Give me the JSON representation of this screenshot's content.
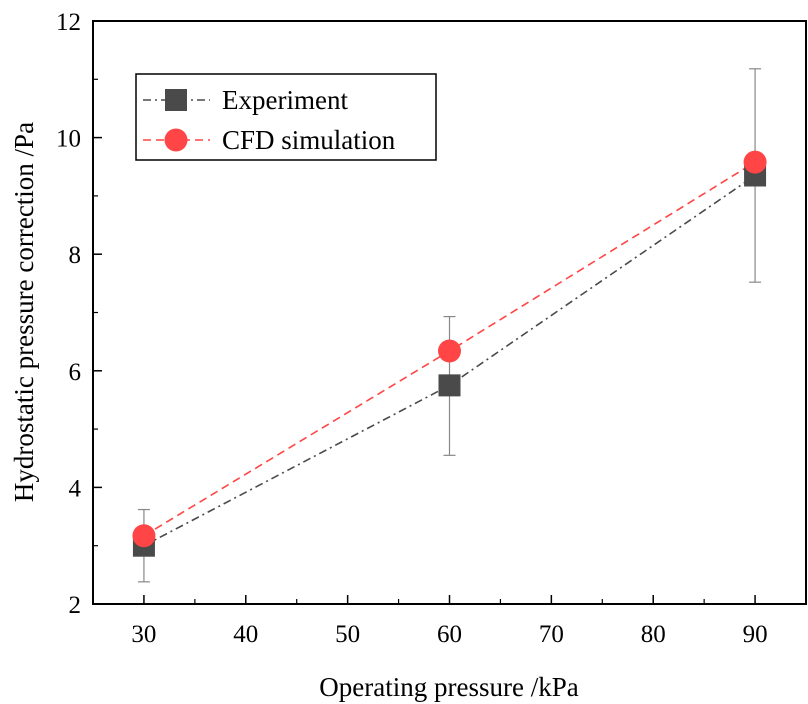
{
  "chart_data": {
    "type": "line",
    "xlabel": "Operating pressure /kPa",
    "ylabel": "Hydrostatic pressure correction /Pa",
    "xlim": [
      25,
      95
    ],
    "ylim": [
      2,
      12
    ],
    "xticks": [
      30,
      40,
      50,
      60,
      70,
      80,
      90
    ],
    "yticks": [
      2,
      4,
      6,
      8,
      10,
      12
    ],
    "x_tick_labels": [
      "30",
      "40",
      "50",
      "60",
      "70",
      "80",
      "90"
    ],
    "y_tick_labels": [
      "2",
      "4",
      "6",
      "8",
      "10",
      "12"
    ],
    "grid": false,
    "legend_position": "top-left",
    "series": [
      {
        "name": "Experiment",
        "x": [
          30,
          60,
          90
        ],
        "y": [
          3.0,
          5.75,
          9.35
        ],
        "yerr_low": [
          2.38,
          4.55,
          7.52
        ],
        "yerr_high": [
          3.62,
          6.93,
          11.18
        ],
        "color": "#4a4a4a",
        "line_style": "dash-dot",
        "marker": "square"
      },
      {
        "name": "CFD simulation",
        "x": [
          30,
          60,
          90
        ],
        "y": [
          3.17,
          6.34,
          9.58
        ],
        "color": "#ff4545",
        "line_style": "dashed",
        "marker": "circle"
      }
    ]
  }
}
